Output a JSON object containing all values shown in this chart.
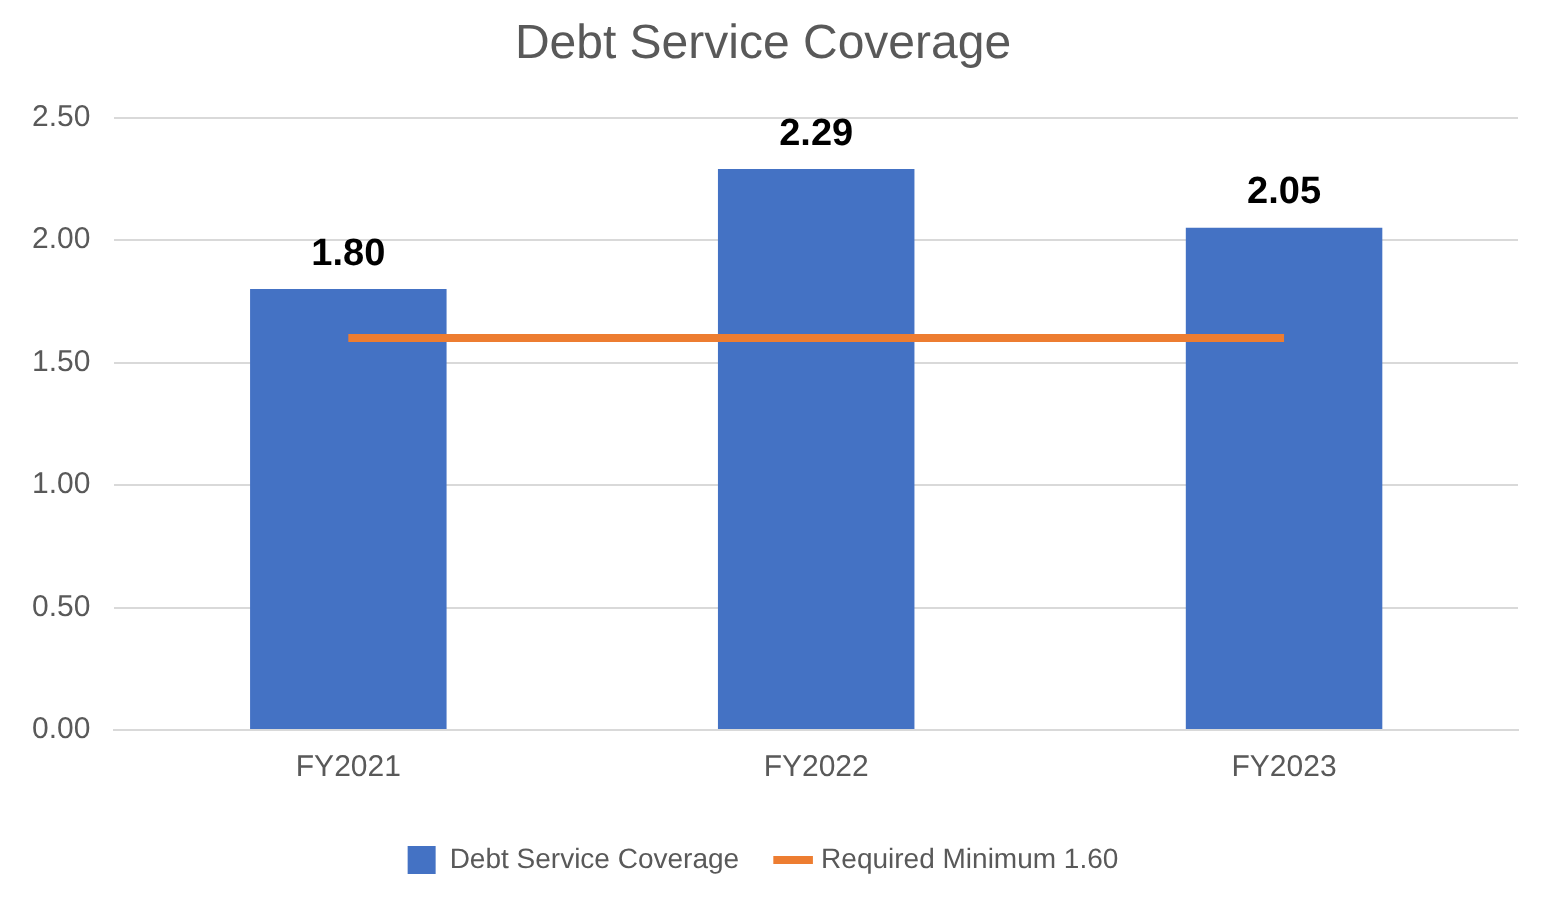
{
  "chart_data": {
    "type": "bar",
    "title": "Debt Service Coverage",
    "categories": [
      "FY2021",
      "FY2022",
      "FY2023"
    ],
    "series": [
      {
        "name": "Debt Service Coverage",
        "color": "#4472c4",
        "values": [
          1.8,
          2.29,
          2.05
        ],
        "value_labels": [
          "1.80",
          "2.29",
          "2.05"
        ]
      },
      {
        "name": "Required Minimum 1.60",
        "type": "line",
        "color": "#ed7d31",
        "values": [
          1.6,
          1.6,
          1.6
        ]
      }
    ],
    "ylim": [
      0,
      2.5
    ],
    "yticks": [
      {
        "value": 0,
        "label": "0.00"
      },
      {
        "value": 0.5,
        "label": "0.50"
      },
      {
        "value": 1,
        "label": "1.00"
      },
      {
        "value": 1.5,
        "label": "1.50"
      },
      {
        "value": 2,
        "label": "2.00"
      },
      {
        "value": 2.5,
        "label": "2.50"
      }
    ],
    "grid": "y",
    "legend": "bottom",
    "marker": "none"
  }
}
